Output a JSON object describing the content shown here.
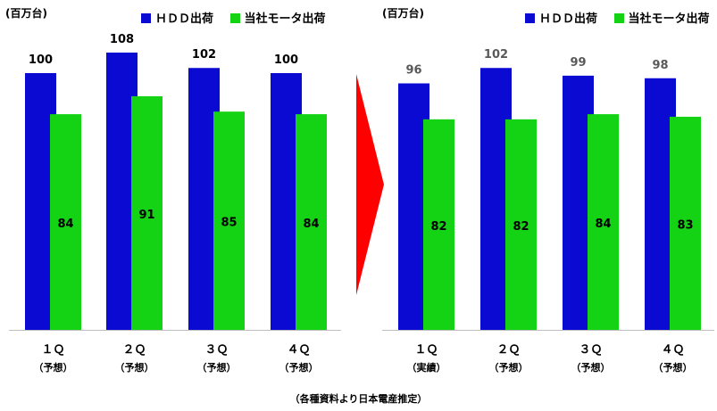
{
  "colors": {
    "hdd": "#0a0ad2",
    "motor": "#14d214",
    "arrow": "#ff0000",
    "hdd_label_left": "#000000",
    "hdd_label_right": "#595959"
  },
  "source_note": "（各種資料より日本電産推定）",
  "chart_data": [
    {
      "type": "bar",
      "unit": "(百万台)",
      "categories": [
        "１Ｑ",
        "２Ｑ",
        "３Ｑ",
        "４Ｑ"
      ],
      "category_notes": [
        "（予想）",
        "（予想）",
        "（予想）",
        "（予想）"
      ],
      "series": [
        {
          "name": "ＨＤＤ出荷",
          "values": [
            100,
            108,
            102,
            100
          ]
        },
        {
          "name": "当社モータ出荷",
          "values": [
            84,
            91,
            85,
            84
          ]
        }
      ],
      "legend": "top"
    },
    {
      "type": "bar",
      "unit": "(百万台)",
      "categories": [
        "１Ｑ",
        "２Ｑ",
        "３Ｑ",
        "４Ｑ"
      ],
      "category_notes": [
        "（実績）",
        "（予想）",
        "（予想）",
        "（予想）"
      ],
      "series": [
        {
          "name": "ＨＤＤ出荷",
          "values": [
            96,
            102,
            99,
            98
          ]
        },
        {
          "name": "当社モータ出荷",
          "values": [
            82,
            82,
            84,
            83
          ]
        }
      ],
      "legend": "top"
    }
  ]
}
